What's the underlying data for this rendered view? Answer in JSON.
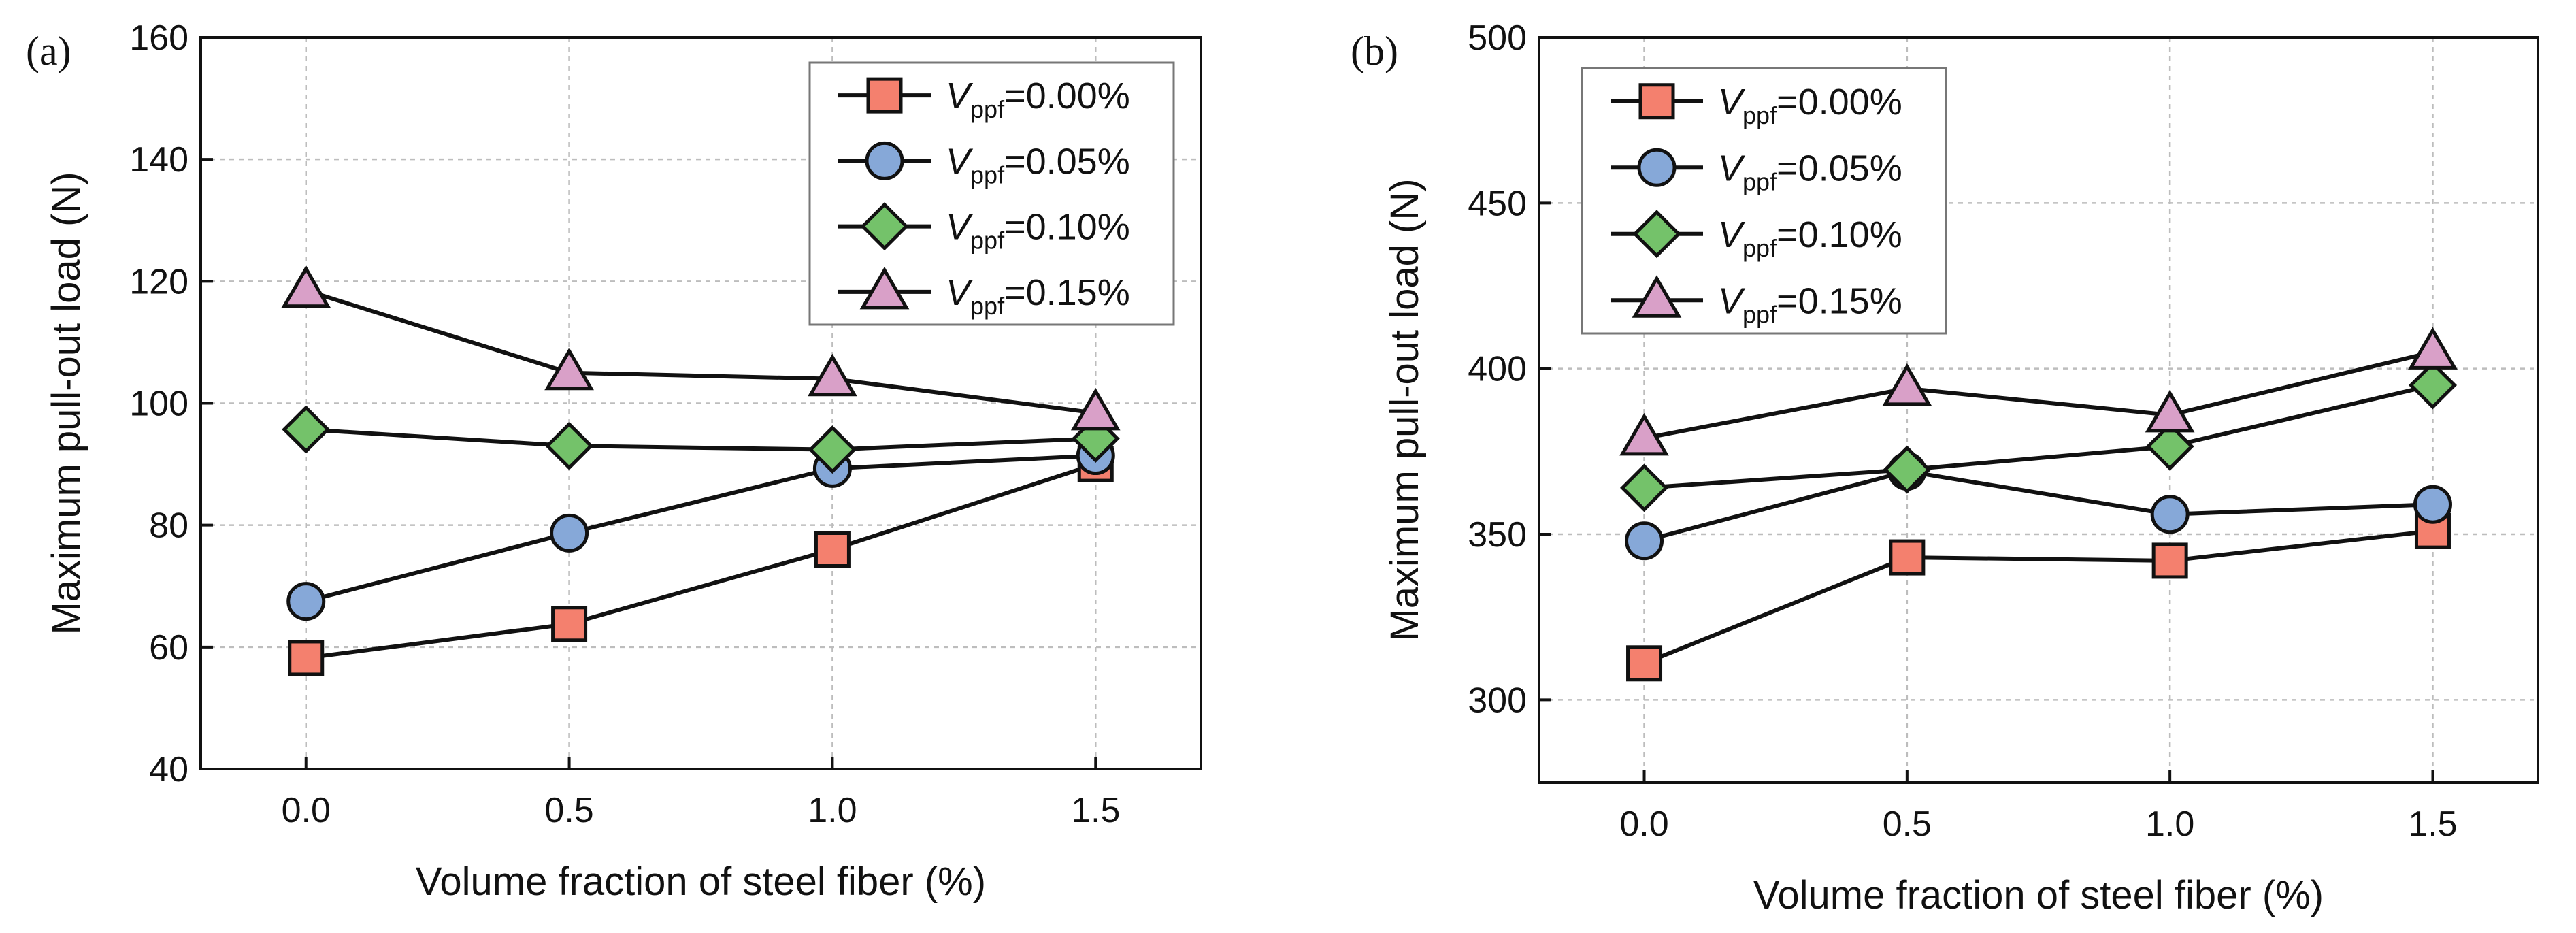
{
  "figure": {
    "panels": [
      {
        "label": "(a)",
        "chart_data": {
          "type": "line",
          "title": "",
          "xlabel": "Volume fraction of steel fiber (%)",
          "ylabel": "Maximum pull-out load (N)",
          "x": [
            0.0,
            0.5,
            1.0,
            1.5
          ],
          "xticks": [
            "0.0",
            "0.5",
            "1.0",
            "1.5"
          ],
          "xlim": [
            -0.2,
            1.7
          ],
          "ylim": [
            40,
            160
          ],
          "yticks": [
            "40",
            "60",
            "80",
            "100",
            "120",
            "140",
            "160"
          ],
          "grid": true,
          "legend_position": "top-right",
          "series": [
            {
              "name": "Vppf=0.00%",
              "legend_var": "V",
              "legend_sub": "ppf",
              "legend_val": "=0.00%",
              "marker": "square",
              "color": "#f4806e",
              "values": [
                58.2,
                63.8,
                76.0,
                90.0
              ]
            },
            {
              "name": "Vppf=0.05%",
              "legend_var": "V",
              "legend_sub": "ppf",
              "legend_val": "=0.05%",
              "marker": "circle",
              "color": "#86a8d8",
              "values": [
                67.5,
                78.7,
                89.3,
                91.4
              ]
            },
            {
              "name": "Vppf=0.10%",
              "legend_var": "V",
              "legend_sub": "ppf",
              "legend_val": "=0.10%",
              "marker": "diamond",
              "color": "#74c26a",
              "values": [
                95.7,
                93.0,
                92.4,
                94.2
              ]
            },
            {
              "name": "Vppf=0.15%",
              "legend_var": "V",
              "legend_sub": "ppf",
              "legend_val": "=0.15%",
              "marker": "triangle",
              "color": "#d9a0c8",
              "values": [
                118.5,
                105.0,
                104.0,
                98.4
              ]
            }
          ]
        }
      },
      {
        "label": "(b)",
        "chart_data": {
          "type": "line",
          "title": "",
          "xlabel": "Volume fraction of steel fiber (%)",
          "ylabel": "Maximum pull-out load (N)",
          "x": [
            0.0,
            0.5,
            1.0,
            1.5
          ],
          "xticks": [
            "0.0",
            "0.5",
            "1.0",
            "1.5"
          ],
          "xlim": [
            -0.2,
            1.7
          ],
          "ylim": [
            275,
            500
          ],
          "yticks": [
            "300",
            "350",
            "400",
            "450",
            "500"
          ],
          "grid": true,
          "legend_position": "top-left",
          "series": [
            {
              "name": "Vppf=0.00%",
              "legend_var": "V",
              "legend_sub": "ppf",
              "legend_val": "=0.00%",
              "marker": "square",
              "color": "#f4806e",
              "values": [
                311,
                343,
                342,
                351
              ]
            },
            {
              "name": "Vppf=0.05%",
              "legend_var": "V",
              "legend_sub": "ppf",
              "legend_val": "=0.05%",
              "marker": "circle",
              "color": "#86a8d8",
              "values": [
                348,
                369,
                356,
                359
              ]
            },
            {
              "name": "Vppf=0.10%",
              "legend_var": "V",
              "legend_sub": "ppf",
              "legend_val": "=0.10%",
              "marker": "diamond",
              "color": "#74c26a",
              "values": [
                364,
                369.5,
                376.5,
                395
              ]
            },
            {
              "name": "Vppf=0.15%",
              "legend_var": "V",
              "legend_sub": "ppf",
              "legend_val": "=0.15%",
              "marker": "triangle",
              "color": "#d9a0c8",
              "values": [
                379,
                394,
                386,
                405
              ]
            }
          ]
        }
      }
    ]
  }
}
